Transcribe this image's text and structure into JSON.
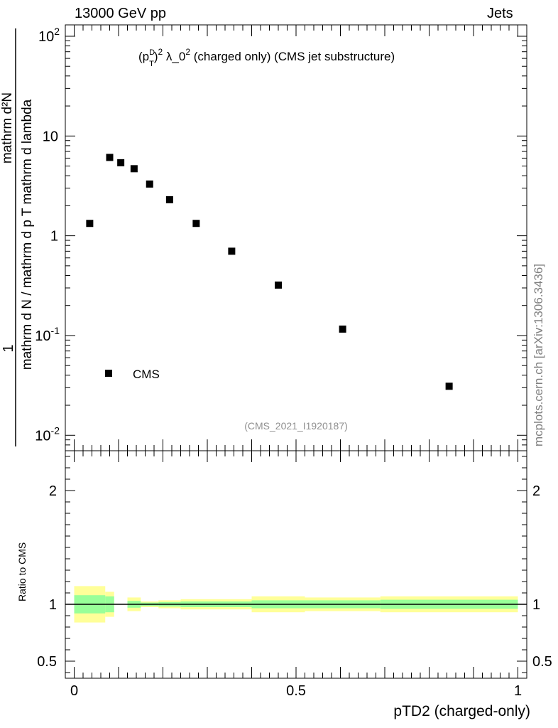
{
  "header": {
    "left": "13000 GeV pp",
    "right": "Jets"
  },
  "side_label": "mcplots.cern.ch [arXiv:1306.3436]",
  "chart_data": [
    {
      "type": "scatter",
      "title_parts": {
        "pre": "(p",
        "sup_D": "D",
        "sub_T": "T",
        "post": ")",
        "exp": "2",
        "mid": " λ_0",
        "exp2": "2",
        "tail": " (charged only) (CMS jet substructure)"
      },
      "watermark": "(CMS_2021_I1920187)",
      "ylabel": {
        "numerator": "mathrm d²N",
        "denominator_1": "mathrm d p",
        "denominator_2": " mathrm d lambda",
        "sub_T": "T",
        "prefix_num": "1",
        "prefix_den": "mathrm d N / mathrm d p",
        "prefix_den2": "mathrm d N / mathrm d p"
      },
      "ylog": true,
      "ylim": [
        0.007,
        130
      ],
      "xlim": [
        -0.02,
        1.02
      ],
      "ytick_labels": [
        "10^-2",
        "10^-1",
        "1",
        "10",
        "10^2"
      ],
      "legend": {
        "label": "CMS",
        "placement": "bottom-left"
      },
      "series": [
        {
          "name": "CMS",
          "x": [
            0.035,
            0.08,
            0.105,
            0.135,
            0.17,
            0.215,
            0.275,
            0.355,
            0.46,
            0.605,
            0.845
          ],
          "y": [
            1.33,
            6.1,
            5.4,
            4.7,
            3.3,
            2.3,
            1.33,
            0.7,
            0.32,
            0.116,
            0.031
          ]
        }
      ]
    },
    {
      "type": "area",
      "ylabel": "Ratio to CMS",
      "xlabel": "pTD2 (charged-only)",
      "xlim": [
        -0.02,
        1.02
      ],
      "ylim": [
        0.35,
        2.35
      ],
      "xtick_labels": [
        "0",
        "0.5",
        "1"
      ],
      "ytick_labels": [
        "0.5",
        "1",
        "2"
      ],
      "bins": [
        {
          "x0": 0.0,
          "x1": 0.07,
          "inner": [
            0.92,
            1.08
          ],
          "outer": [
            0.84,
            1.16
          ]
        },
        {
          "x0": 0.07,
          "x1": 0.09,
          "inner": [
            0.93,
            1.07
          ],
          "outer": [
            0.89,
            1.11
          ]
        },
        {
          "x0": 0.12,
          "x1": 0.15,
          "inner": [
            0.97,
            1.03
          ],
          "outer": [
            0.94,
            1.06
          ]
        },
        {
          "x0": 0.15,
          "x1": 0.19,
          "inner": [
            0.985,
            1.015
          ],
          "outer": [
            0.975,
            1.025
          ]
        },
        {
          "x0": 0.19,
          "x1": 0.24,
          "inner": [
            0.98,
            1.02
          ],
          "outer": [
            0.965,
            1.035
          ]
        },
        {
          "x0": 0.24,
          "x1": 0.4,
          "inner": [
            0.975,
            1.025
          ],
          "outer": [
            0.955,
            1.045
          ]
        },
        {
          "x0": 0.4,
          "x1": 0.52,
          "inner": [
            0.965,
            1.035
          ],
          "outer": [
            0.93,
            1.07
          ]
        },
        {
          "x0": 0.52,
          "x1": 0.69,
          "inner": [
            0.965,
            1.035
          ],
          "outer": [
            0.94,
            1.06
          ]
        },
        {
          "x0": 0.69,
          "x1": 1.0,
          "inner": [
            0.96,
            1.04
          ],
          "outer": [
            0.93,
            1.07
          ]
        }
      ],
      "bins_gap_note": "",
      "colors": {
        "inner": "#99ff99",
        "outer": "#ffff99",
        "line": "#000000"
      }
    }
  ]
}
